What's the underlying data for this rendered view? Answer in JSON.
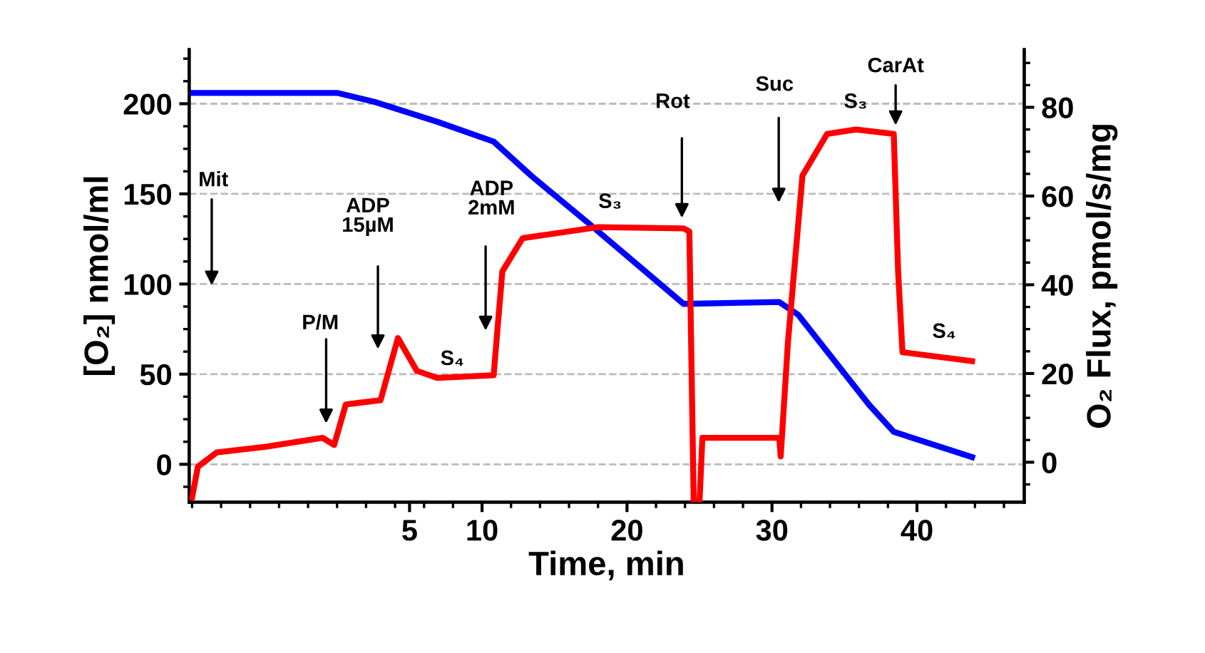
{
  "chart_data": {
    "type": "line",
    "xlabel": "Time, min",
    "ylabel": "[O₂] nmol/ml",
    "y2label": "O₂ Flux, pmol/s/mg",
    "xlim": [
      -10.2,
      47.4
    ],
    "xticks": [
      5,
      10,
      20,
      30,
      40
    ],
    "ylim": [
      -21,
      230
    ],
    "yticks": [
      0,
      50,
      100,
      150,
      200
    ],
    "y2lim": [
      -9,
      93
    ],
    "y2ticks": [
      0,
      20,
      40,
      60,
      80
    ],
    "grid": "y",
    "line_style": "solid",
    "marker": "none",
    "series": [
      {
        "color": "#0000ff",
        "x": [
          -10.0,
          0,
          2.6,
          6.9,
          10.8,
          13.4,
          17.3,
          23.9,
          30.5,
          31.8,
          36.7,
          38.4,
          43.8
        ],
        "values": [
          206,
          206,
          201,
          190,
          179,
          160,
          134,
          89,
          90,
          83,
          33,
          18,
          4
        ]
      },
      {
        "color": "#ff0000",
        "axis": "y2",
        "x": [
          -10.0,
          -9.6,
          -8.3,
          -4.9,
          -1.0,
          -0.2,
          0.6,
          3.0,
          4.2,
          5.5,
          6.9,
          10.8,
          11.4,
          12.8,
          18.0,
          23.9,
          24.3,
          24.6,
          25.0,
          25.2,
          30.5,
          30.6,
          31.1,
          32.1,
          33.8,
          35.8,
          38.4,
          38.7,
          39.0,
          43.8
        ],
        "values": [
          -8,
          -1,
          2.2,
          3.5,
          5.5,
          3.9,
          13,
          14,
          28,
          20.6,
          19,
          19.6,
          43,
          50.5,
          53,
          52.7,
          52,
          -9,
          -9,
          5.5,
          5.5,
          1.3,
          27,
          64.6,
          74,
          75,
          74,
          43,
          24.8,
          22.8
        ]
      }
    ],
    "annotations": [
      "Mit",
      "P/M",
      "ADP\n15µM",
      "S₄",
      "ADP\n2mM",
      "S₃",
      "Rot",
      "Suc",
      "S₃",
      "CarAt",
      "S₄"
    ]
  }
}
